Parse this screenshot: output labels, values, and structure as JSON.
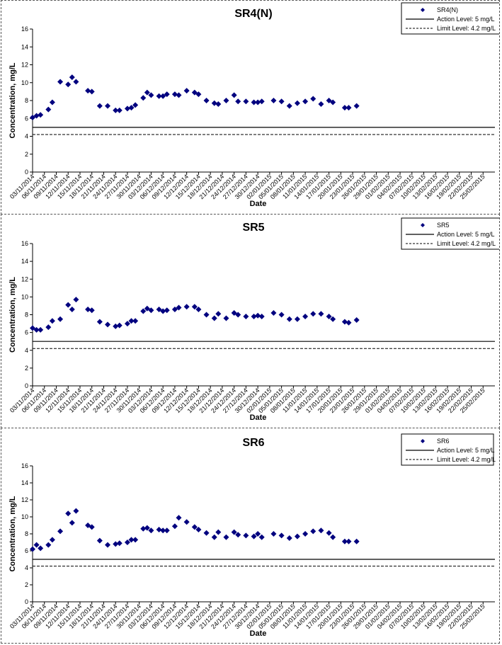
{
  "colors": {
    "marker": "#00007f",
    "action": "#000000",
    "limit": "#000000",
    "panel_border": "#555555"
  },
  "dates": [
    "03/11/2014",
    "06/11/2014",
    "09/11/2014",
    "12/11/2014",
    "15/11/2014",
    "18/11/2014",
    "21/11/2014",
    "24/11/2014",
    "27/11/2014",
    "30/11/2014",
    "03/12/2014",
    "06/12/2014",
    "09/12/2014",
    "12/12/2014",
    "15/12/2014",
    "18/12/2014",
    "21/12/2014",
    "24/12/2014",
    "27/12/2014",
    "30/12/2014",
    "02/01/2015",
    "05/01/2015",
    "08/01/2015",
    "11/01/2015",
    "14/01/2015",
    "17/01/2015",
    "20/01/2015",
    "23/01/2015",
    "26/01/2015",
    "29/01/2015",
    "01/02/2015",
    "04/02/2015",
    "07/02/2015",
    "10/02/2015",
    "13/02/2015",
    "16/02/2015",
    "19/02/2015",
    "22/02/2015",
    "25/02/2015"
  ],
  "chart_data": [
    {
      "type": "scatter",
      "title": "SR4(N)",
      "xlabel": "Date",
      "ylabel": "Concentration, mg/L",
      "ylim": [
        0,
        16
      ],
      "yticks": [
        "0",
        "2",
        "4",
        "6",
        "8",
        "10",
        "12",
        "14",
        "16"
      ],
      "x_range": [
        "03/11/2014",
        "28/02/2015"
      ],
      "grid": false,
      "legend_position": "top-right",
      "series": [
        {
          "name": "SR4(N)",
          "kind": "marker",
          "points": [
            [
              "03/11/2014",
              6.1
            ],
            [
              "04/11/2014",
              6.3
            ],
            [
              "05/11/2014",
              6.4
            ],
            [
              "07/11/2014",
              7.0
            ],
            [
              "08/11/2014",
              7.8
            ],
            [
              "10/11/2014",
              10.1
            ],
            [
              "12/11/2014",
              9.8
            ],
            [
              "13/11/2014",
              10.6
            ],
            [
              "14/11/2014",
              10.1
            ],
            [
              "17/11/2014",
              9.1
            ],
            [
              "18/11/2014",
              9.0
            ],
            [
              "20/11/2014",
              7.4
            ],
            [
              "22/11/2014",
              7.4
            ],
            [
              "24/11/2014",
              6.9
            ],
            [
              "25/11/2014",
              6.9
            ],
            [
              "27/11/2014",
              7.1
            ],
            [
              "28/11/2014",
              7.2
            ],
            [
              "29/11/2014",
              7.5
            ],
            [
              "01/12/2014",
              8.3
            ],
            [
              "02/12/2014",
              8.9
            ],
            [
              "03/12/2014",
              8.6
            ],
            [
              "05/12/2014",
              8.5
            ],
            [
              "06/12/2014",
              8.5
            ],
            [
              "07/12/2014",
              8.7
            ],
            [
              "09/12/2014",
              8.7
            ],
            [
              "10/12/2014",
              8.6
            ],
            [
              "12/12/2014",
              9.1
            ],
            [
              "14/12/2014",
              8.9
            ],
            [
              "15/12/2014",
              8.7
            ],
            [
              "17/12/2014",
              8.0
            ],
            [
              "19/12/2014",
              7.7
            ],
            [
              "20/12/2014",
              7.6
            ],
            [
              "22/12/2014",
              8.0
            ],
            [
              "24/12/2014",
              8.6
            ],
            [
              "25/12/2014",
              7.9
            ],
            [
              "27/12/2014",
              7.9
            ],
            [
              "29/12/2014",
              7.8
            ],
            [
              "30/12/2014",
              7.8
            ],
            [
              "31/12/2014",
              7.9
            ],
            [
              "03/01/2015",
              8.0
            ],
            [
              "05/01/2015",
              7.9
            ],
            [
              "07/01/2015",
              7.4
            ],
            [
              "09/01/2015",
              7.7
            ],
            [
              "11/01/2015",
              7.9
            ],
            [
              "13/01/2015",
              8.2
            ],
            [
              "15/01/2015",
              7.6
            ],
            [
              "17/01/2015",
              8.0
            ],
            [
              "18/01/2015",
              7.8
            ],
            [
              "21/01/2015",
              7.2
            ],
            [
              "22/01/2015",
              7.2
            ],
            [
              "24/01/2015",
              7.4
            ]
          ]
        },
        {
          "name": "Action Level: 5 mg/L",
          "kind": "solid",
          "value": 5
        },
        {
          "name": "Limit Level: 4.2 mg/L",
          "kind": "dashed",
          "value": 4.2
        }
      ]
    },
    {
      "type": "scatter",
      "title": "SR5",
      "xlabel": "Date",
      "ylabel": "Concentration, mg/L",
      "ylim": [
        0,
        16
      ],
      "yticks": [
        "0",
        "2",
        "4",
        "6",
        "8",
        "10",
        "12",
        "14",
        "16"
      ],
      "x_range": [
        "03/11/2014",
        "28/02/2015"
      ],
      "grid": false,
      "legend_position": "top-right",
      "series": [
        {
          "name": "SR5",
          "kind": "marker",
          "points": [
            [
              "03/11/2014",
              6.5
            ],
            [
              "04/11/2014",
              6.3
            ],
            [
              "05/11/2014",
              6.3
            ],
            [
              "07/11/2014",
              6.6
            ],
            [
              "08/11/2014",
              7.3
            ],
            [
              "10/11/2014",
              7.5
            ],
            [
              "12/11/2014",
              9.1
            ],
            [
              "13/11/2014",
              8.6
            ],
            [
              "14/11/2014",
              9.7
            ],
            [
              "17/11/2014",
              8.6
            ],
            [
              "18/11/2014",
              8.5
            ],
            [
              "20/11/2014",
              7.2
            ],
            [
              "22/11/2014",
              6.9
            ],
            [
              "24/11/2014",
              6.7
            ],
            [
              "25/11/2014",
              6.8
            ],
            [
              "27/11/2014",
              7.0
            ],
            [
              "28/11/2014",
              7.3
            ],
            [
              "29/11/2014",
              7.3
            ],
            [
              "01/12/2014",
              8.4
            ],
            [
              "02/12/2014",
              8.7
            ],
            [
              "03/12/2014",
              8.5
            ],
            [
              "05/12/2014",
              8.6
            ],
            [
              "06/12/2014",
              8.4
            ],
            [
              "07/12/2014",
              8.5
            ],
            [
              "09/12/2014",
              8.6
            ],
            [
              "10/12/2014",
              8.8
            ],
            [
              "12/12/2014",
              8.9
            ],
            [
              "14/12/2014",
              8.9
            ],
            [
              "15/12/2014",
              8.6
            ],
            [
              "17/12/2014",
              8.0
            ],
            [
              "19/12/2014",
              7.6
            ],
            [
              "20/12/2014",
              8.1
            ],
            [
              "22/12/2014",
              7.6
            ],
            [
              "24/12/2014",
              8.2
            ],
            [
              "25/12/2014",
              8.0
            ],
            [
              "27/12/2014",
              7.8
            ],
            [
              "29/12/2014",
              7.8
            ],
            [
              "30/12/2014",
              7.9
            ],
            [
              "31/12/2014",
              7.8
            ],
            [
              "03/01/2015",
              8.2
            ],
            [
              "05/01/2015",
              8.0
            ],
            [
              "07/01/2015",
              7.5
            ],
            [
              "09/01/2015",
              7.5
            ],
            [
              "11/01/2015",
              7.8
            ],
            [
              "13/01/2015",
              8.1
            ],
            [
              "15/01/2015",
              8.1
            ],
            [
              "17/01/2015",
              7.8
            ],
            [
              "18/01/2015",
              7.5
            ],
            [
              "21/01/2015",
              7.2
            ],
            [
              "22/01/2015",
              7.1
            ],
            [
              "24/01/2015",
              7.4
            ]
          ]
        },
        {
          "name": "Action Level: 5 mg/L",
          "kind": "solid",
          "value": 5
        },
        {
          "name": "Limit Level: 4.2 mg/L",
          "kind": "dashed",
          "value": 4.2
        }
      ]
    },
    {
      "type": "scatter",
      "title": "SR6",
      "xlabel": "Date",
      "ylabel": "Concentration, mg/L",
      "ylim": [
        0,
        16
      ],
      "yticks": [
        "0",
        "2",
        "4",
        "6",
        "8",
        "10",
        "12",
        "14",
        "16"
      ],
      "x_range": [
        "03/11/2014",
        "28/02/2015"
      ],
      "grid": false,
      "legend_position": "top-right",
      "series": [
        {
          "name": "SR6",
          "kind": "marker",
          "points": [
            [
              "03/11/2014",
              6.2
            ],
            [
              "04/11/2014",
              6.7
            ],
            [
              "05/11/2014",
              6.3
            ],
            [
              "07/11/2014",
              6.7
            ],
            [
              "08/11/2014",
              7.3
            ],
            [
              "10/11/2014",
              8.3
            ],
            [
              "12/11/2014",
              10.4
            ],
            [
              "13/11/2014",
              9.3
            ],
            [
              "14/11/2014",
              10.7
            ],
            [
              "17/11/2014",
              9.0
            ],
            [
              "18/11/2014",
              8.8
            ],
            [
              "20/11/2014",
              7.2
            ],
            [
              "22/11/2014",
              6.7
            ],
            [
              "24/11/2014",
              6.8
            ],
            [
              "25/11/2014",
              6.9
            ],
            [
              "27/11/2014",
              7.0
            ],
            [
              "28/11/2014",
              7.3
            ],
            [
              "29/11/2014",
              7.3
            ],
            [
              "01/12/2014",
              8.6
            ],
            [
              "02/12/2014",
              8.7
            ],
            [
              "03/12/2014",
              8.4
            ],
            [
              "05/12/2014",
              8.5
            ],
            [
              "06/12/2014",
              8.4
            ],
            [
              "07/12/2014",
              8.4
            ],
            [
              "09/12/2014",
              8.9
            ],
            [
              "10/12/2014",
              9.9
            ],
            [
              "12/12/2014",
              9.4
            ],
            [
              "14/12/2014",
              8.8
            ],
            [
              "15/12/2014",
              8.5
            ],
            [
              "17/12/2014",
              8.1
            ],
            [
              "19/12/2014",
              7.6
            ],
            [
              "20/12/2014",
              8.2
            ],
            [
              "22/12/2014",
              7.6
            ],
            [
              "24/12/2014",
              8.2
            ],
            [
              "25/12/2014",
              7.9
            ],
            [
              "27/12/2014",
              7.8
            ],
            [
              "29/12/2014",
              7.7
            ],
            [
              "30/12/2014",
              8.0
            ],
            [
              "31/12/2014",
              7.6
            ],
            [
              "03/01/2015",
              8.0
            ],
            [
              "05/01/2015",
              7.8
            ],
            [
              "07/01/2015",
              7.5
            ],
            [
              "09/01/2015",
              7.7
            ],
            [
              "11/01/2015",
              8.0
            ],
            [
              "13/01/2015",
              8.3
            ],
            [
              "15/01/2015",
              8.4
            ],
            [
              "17/01/2015",
              8.1
            ],
            [
              "18/01/2015",
              7.6
            ],
            [
              "21/01/2015",
              7.1
            ],
            [
              "22/01/2015",
              7.1
            ],
            [
              "24/01/2015",
              7.1
            ]
          ]
        },
        {
          "name": "Action Level: 5 mg/L",
          "kind": "solid",
          "value": 5
        },
        {
          "name": "Limit Level: 4.2 mg/L",
          "kind": "dashed",
          "value": 4.2
        }
      ]
    }
  ]
}
